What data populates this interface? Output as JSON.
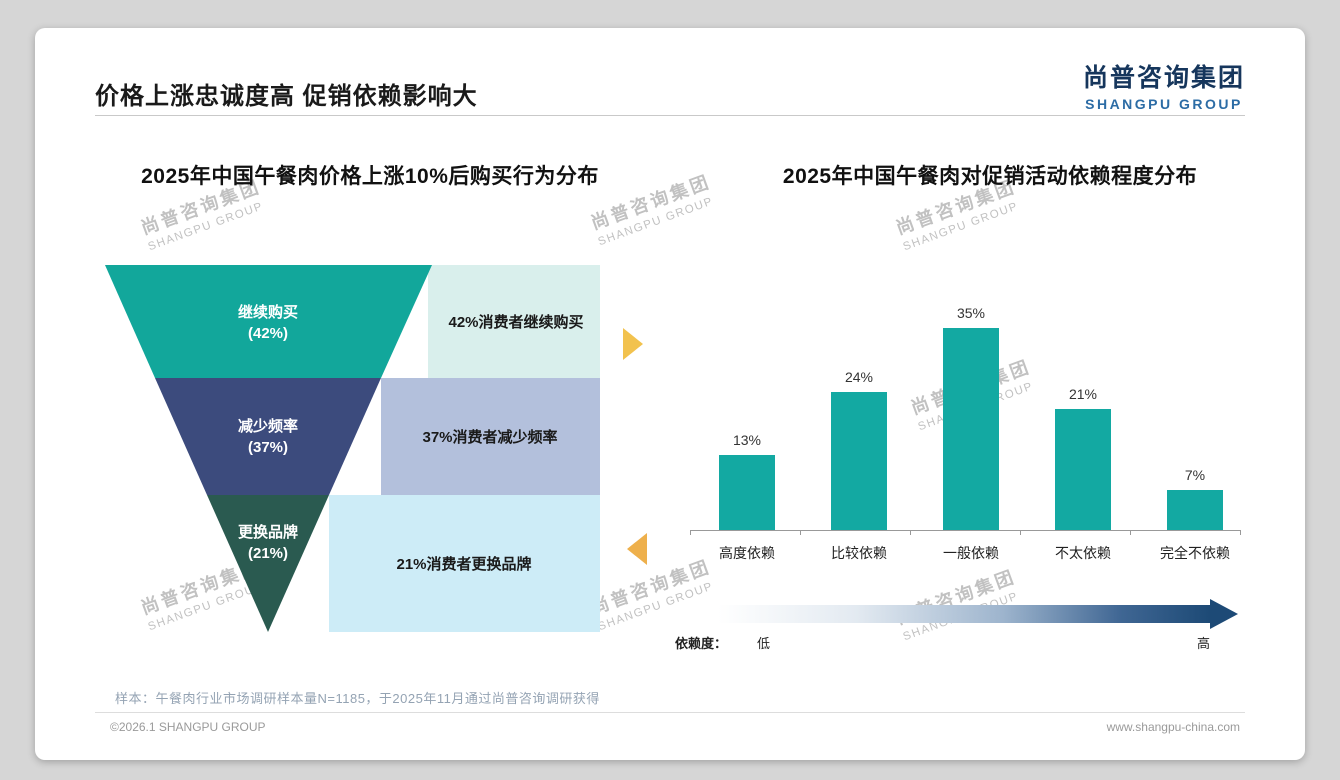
{
  "page": {
    "title": "价格上涨忠诚度高 促销依赖影响大",
    "logo": {
      "cn": "尚普咨询集团",
      "en": "SHANGPU GROUP"
    },
    "watermark": {
      "cn": "尚普咨询集团",
      "en": "SHANGPU GROUP"
    },
    "note": "样本：午餐肉行业市场调研样本量N=1185，于2025年11月通过尚普咨询调研获得",
    "footer": {
      "left": "©2026.1 SHANGPU GROUP",
      "right": "www.shangpu-china.com"
    }
  },
  "chart_data": [
    {
      "type": "funnel",
      "title": "2025年中国午餐肉价格上涨10%后购买行为分布",
      "segments": [
        {
          "label": "继续购买",
          "value": 42,
          "value_label": "(42%)",
          "desc": "42%消费者继续购买",
          "color": "#12a79b",
          "desc_bg": "#d9efec"
        },
        {
          "label": "减少频率",
          "value": 37,
          "value_label": "(37%)",
          "desc": "37%消费者减少频率",
          "color": "#3c4b7d",
          "desc_bg": "#b3c0dc"
        },
        {
          "label": "更换品牌",
          "value": 21,
          "value_label": "(21%)",
          "desc": "21%消费者更换品牌",
          "color": "#2a5a50",
          "desc_bg": "#cdecf7"
        }
      ]
    },
    {
      "type": "bar",
      "title": "2025年中国午餐肉对促销活动依赖程度分布",
      "categories": [
        "高度依赖",
        "比较依赖",
        "一般依赖",
        "不太依赖",
        "完全不依赖"
      ],
      "values": [
        13,
        24,
        35,
        21,
        7
      ],
      "value_labels": [
        "13%",
        "24%",
        "35%",
        "21%",
        "7%"
      ],
      "bar_color": "#13a9a2",
      "ylim": [
        0,
        40
      ],
      "legend": {
        "label": "依赖度：",
        "low": "低",
        "high": "高"
      }
    }
  ]
}
